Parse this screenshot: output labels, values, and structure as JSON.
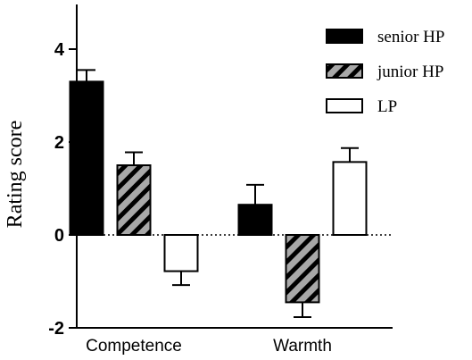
{
  "chart_data": {
    "type": "bar",
    "title": "",
    "xlabel": "",
    "ylabel": "Rating score",
    "ylim": [
      -2,
      5
    ],
    "yticks": [
      -2,
      0,
      2,
      4
    ],
    "zero_line": "dotted",
    "grid": false,
    "legend_position": "top-right",
    "categories": [
      "Competence",
      "Warmth"
    ],
    "series": [
      {
        "name": "senior HP",
        "values": [
          3.3,
          0.65
        ],
        "errors": [
          0.25,
          0.43
        ],
        "fill": "#000000",
        "pattern": "solid"
      },
      {
        "name": "junior HP",
        "values": [
          1.5,
          -1.45
        ],
        "errors": [
          0.28,
          0.32
        ],
        "fill": "#a8a8a8",
        "pattern": "diagonal-stripes"
      },
      {
        "name": "LP",
        "values": [
          -0.78,
          1.57
        ],
        "errors": [
          0.3,
          0.3
        ],
        "fill": "#ffffff",
        "pattern": "none"
      }
    ]
  }
}
